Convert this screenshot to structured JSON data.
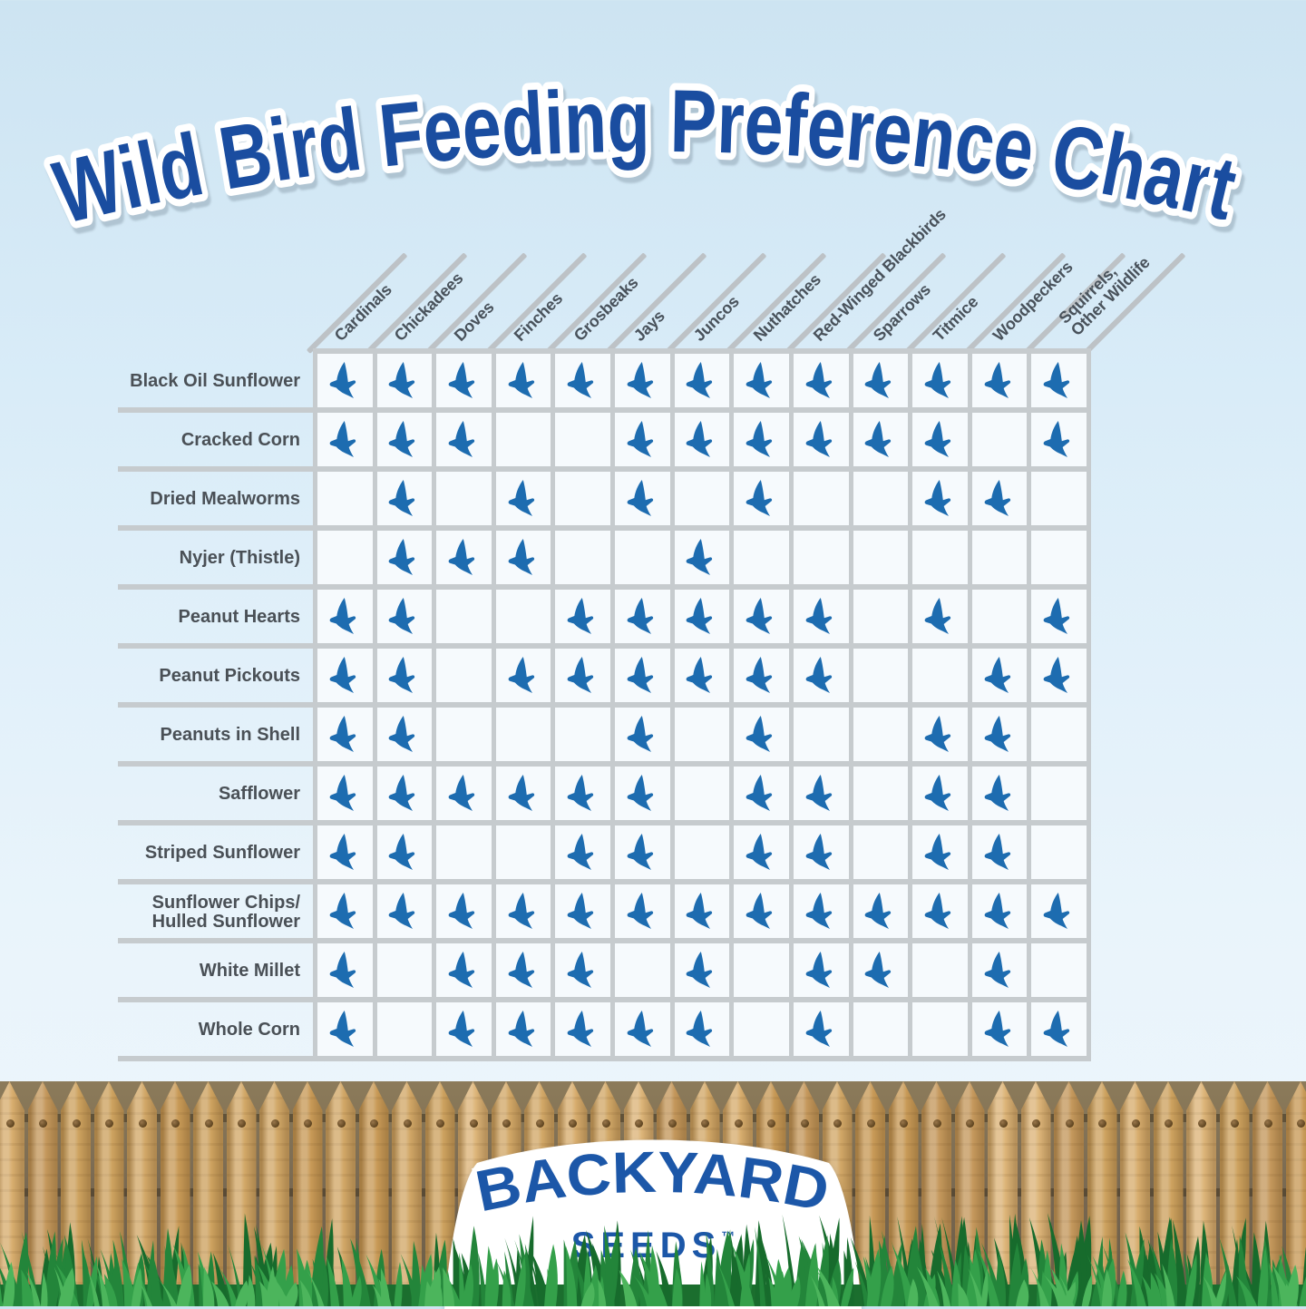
{
  "title": "Wild Bird Feeding Preference Chart",
  "brand": {
    "name": "BACKYARD",
    "sub": "SEEDS",
    "tm": "™"
  },
  "colors": {
    "title_blue": "#1a4da0",
    "bird_blue": "#1d6cb0",
    "brand_blue": "#1c57a8",
    "label_gray": "#4a5056",
    "grid_gray": "#c6cbce",
    "background_sky": "#d9ecf8",
    "fence_wood": "#cfa265",
    "grass_green": "#2f9a45"
  },
  "icons": {
    "cell_mark": "bird-icon"
  },
  "chart_data": {
    "type": "table",
    "title": "Wild Bird Feeding Preference Chart",
    "mark_meaning": "blue bird icon = that species eats this food",
    "columns": [
      "Cardinals",
      "Chickadees",
      "Doves",
      "Finches",
      "Grosbeaks",
      "Jays",
      "Juncos",
      "Nuthatches",
      "Red-Winged Blackbirds",
      "Sparrows",
      "Titmice",
      "Woodpeckers",
      "Squirrels,\nOther Wildlife"
    ],
    "rows": [
      {
        "label": "Black Oil Sunflower",
        "values": [
          1,
          1,
          1,
          1,
          1,
          1,
          1,
          1,
          1,
          1,
          1,
          1,
          1
        ]
      },
      {
        "label": "Cracked Corn",
        "values": [
          1,
          1,
          1,
          0,
          0,
          1,
          1,
          1,
          1,
          1,
          1,
          0,
          1
        ]
      },
      {
        "label": "Dried Mealworms",
        "values": [
          0,
          1,
          0,
          1,
          0,
          1,
          0,
          1,
          0,
          0,
          1,
          1,
          0
        ]
      },
      {
        "label": "Nyjer (Thistle)",
        "values": [
          0,
          1,
          1,
          1,
          0,
          0,
          1,
          0,
          0,
          0,
          0,
          0,
          0
        ]
      },
      {
        "label": "Peanut Hearts",
        "values": [
          1,
          1,
          0,
          0,
          1,
          1,
          1,
          1,
          1,
          0,
          1,
          0,
          1
        ]
      },
      {
        "label": "Peanut Pickouts",
        "values": [
          1,
          1,
          0,
          1,
          1,
          1,
          1,
          1,
          1,
          0,
          0,
          1,
          1
        ]
      },
      {
        "label": "Peanuts in Shell",
        "values": [
          1,
          1,
          0,
          0,
          0,
          1,
          0,
          1,
          0,
          0,
          1,
          1,
          0
        ]
      },
      {
        "label": "Safflower",
        "values": [
          1,
          1,
          1,
          1,
          1,
          1,
          0,
          1,
          1,
          0,
          1,
          1,
          0
        ]
      },
      {
        "label": "Striped Sunflower",
        "values": [
          1,
          1,
          0,
          0,
          1,
          1,
          0,
          1,
          1,
          0,
          1,
          1,
          0
        ]
      },
      {
        "label": "Sunflower Chips/\nHulled Sunflower",
        "values": [
          1,
          1,
          1,
          1,
          1,
          1,
          1,
          1,
          1,
          1,
          1,
          1,
          1
        ]
      },
      {
        "label": "White Millet",
        "values": [
          1,
          0,
          1,
          1,
          1,
          0,
          1,
          0,
          1,
          1,
          0,
          1,
          0
        ]
      },
      {
        "label": "Whole Corn",
        "values": [
          1,
          0,
          1,
          1,
          1,
          1,
          1,
          0,
          1,
          0,
          0,
          1,
          1
        ]
      }
    ]
  }
}
